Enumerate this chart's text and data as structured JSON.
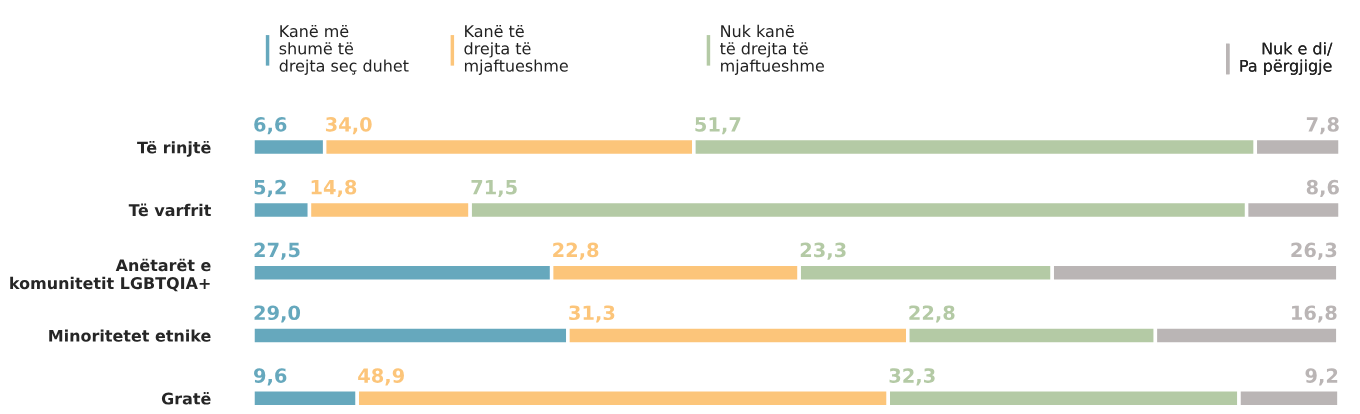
{
  "chart_data": {
    "type": "bar",
    "orientation": "horizontal",
    "stacked": true,
    "legend": "top",
    "grid": false,
    "tick_labels": "y",
    "categories": [
      "Të rinjtë",
      "Të varfrit",
      "Anëtarët e\nkomunitetit LGBTQIA+",
      "Minoritetet etnike",
      "Gratë"
    ],
    "series": [
      {
        "name": "Kanë më\nshumë të\ndrejta seç duhet",
        "color": "#66a8bd",
        "values": [
          6.6,
          5.2,
          27.5,
          29.0,
          9.6
        ],
        "value_labels": [
          "6,6",
          "5,2",
          "27,5",
          "29,0",
          "9,6"
        ]
      },
      {
        "name": "Kanë të\ndrejta të\nmjaftueshme",
        "color": "#fcc57a",
        "values": [
          34.0,
          14.8,
          22.8,
          31.3,
          48.9
        ],
        "value_labels": [
          "34,0",
          "14,8",
          "22,8",
          "31,3",
          "48,9"
        ]
      },
      {
        "name": "Nuk kanë\ntë drejta të\nmjaftueshme",
        "color": "#b4caa5",
        "values": [
          51.7,
          71.5,
          23.3,
          22.8,
          32.3
        ],
        "value_labels": [
          "51,7",
          "71,5",
          "23,3",
          "22,8",
          "32,3"
        ]
      },
      {
        "name": "Nuk e di/\nPa përgjigje",
        "color": "#bab5b5",
        "values": [
          7.8,
          8.6,
          26.3,
          16.8,
          9.2
        ],
        "value_labels": [
          "7,8",
          "8,6",
          "26,3",
          "16,8",
          "9,2"
        ]
      }
    ]
  }
}
